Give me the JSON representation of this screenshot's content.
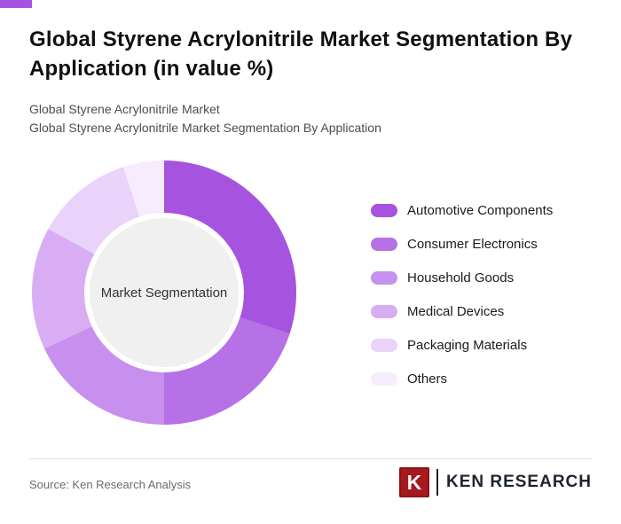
{
  "accent_color": "#a653e0",
  "header": {
    "title": "Global Styrene Acrylonitrile Market Segmentation By Application (in value %)",
    "subtitle1": "Global Styrene Acrylonitrile Market",
    "subtitle2": "Global Styrene Acrylonitrile Market Segmentation By Application"
  },
  "chart_data": {
    "type": "pie",
    "style": "donut",
    "title": "Global Styrene Acrylonitrile Market Segmentation By Application (in value %)",
    "center_label": "Market Segmentation",
    "categories": [
      "Automotive Components",
      "Consumer Electronics",
      "Household Goods",
      "Medical Devices",
      "Packaging Materials",
      "Others"
    ],
    "values": [
      30,
      20,
      18,
      15,
      12,
      5
    ],
    "values_are_estimated": true,
    "values_labeled_on_chart": false,
    "colors": [
      "#a653e0",
      "#b671e7",
      "#c78fee",
      "#d8adf4",
      "#e9d3fa",
      "#f6ecfd"
    ],
    "start_angle_deg": 0,
    "direction": "clockwise",
    "legend_position": "right",
    "hole_color": "#f0f0f0"
  },
  "footer": {
    "source": "Source: Ken Research Analysis",
    "logo_letter": "K",
    "logo_text": "KEN RESEARCH"
  }
}
